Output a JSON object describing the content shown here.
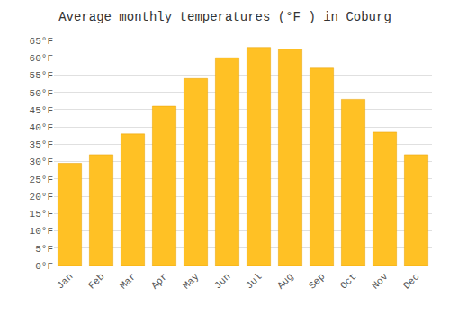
{
  "chart_data": {
    "type": "bar",
    "title": "Average monthly temperatures (°F ) in Coburg",
    "categories": [
      "Jan",
      "Feb",
      "Mar",
      "Apr",
      "May",
      "Jun",
      "Jul",
      "Aug",
      "Sep",
      "Oct",
      "Nov",
      "Dec"
    ],
    "values": [
      29.5,
      32,
      38,
      46,
      54,
      60,
      63,
      62.5,
      57,
      48,
      38.5,
      32
    ],
    "color": "#FFC125",
    "ylim": [
      0,
      65
    ],
    "yticks": [
      {
        "value": 0,
        "label": "0°F"
      },
      {
        "value": 5,
        "label": "5°F"
      },
      {
        "value": 10,
        "label": "10°F"
      },
      {
        "value": 15,
        "label": "15°F"
      },
      {
        "value": 20,
        "label": "20°F"
      },
      {
        "value": 25,
        "label": "25°F"
      },
      {
        "value": 30,
        "label": "30°F"
      },
      {
        "value": 35,
        "label": "35°F"
      },
      {
        "value": 40,
        "label": "40°F"
      },
      {
        "value": 45,
        "label": "45°F"
      },
      {
        "value": 50,
        "label": "50°F"
      },
      {
        "value": 55,
        "label": "55°F"
      },
      {
        "value": 60,
        "label": "60°F"
      },
      {
        "value": 65,
        "label": "65°F"
      }
    ],
    "grid": true
  }
}
